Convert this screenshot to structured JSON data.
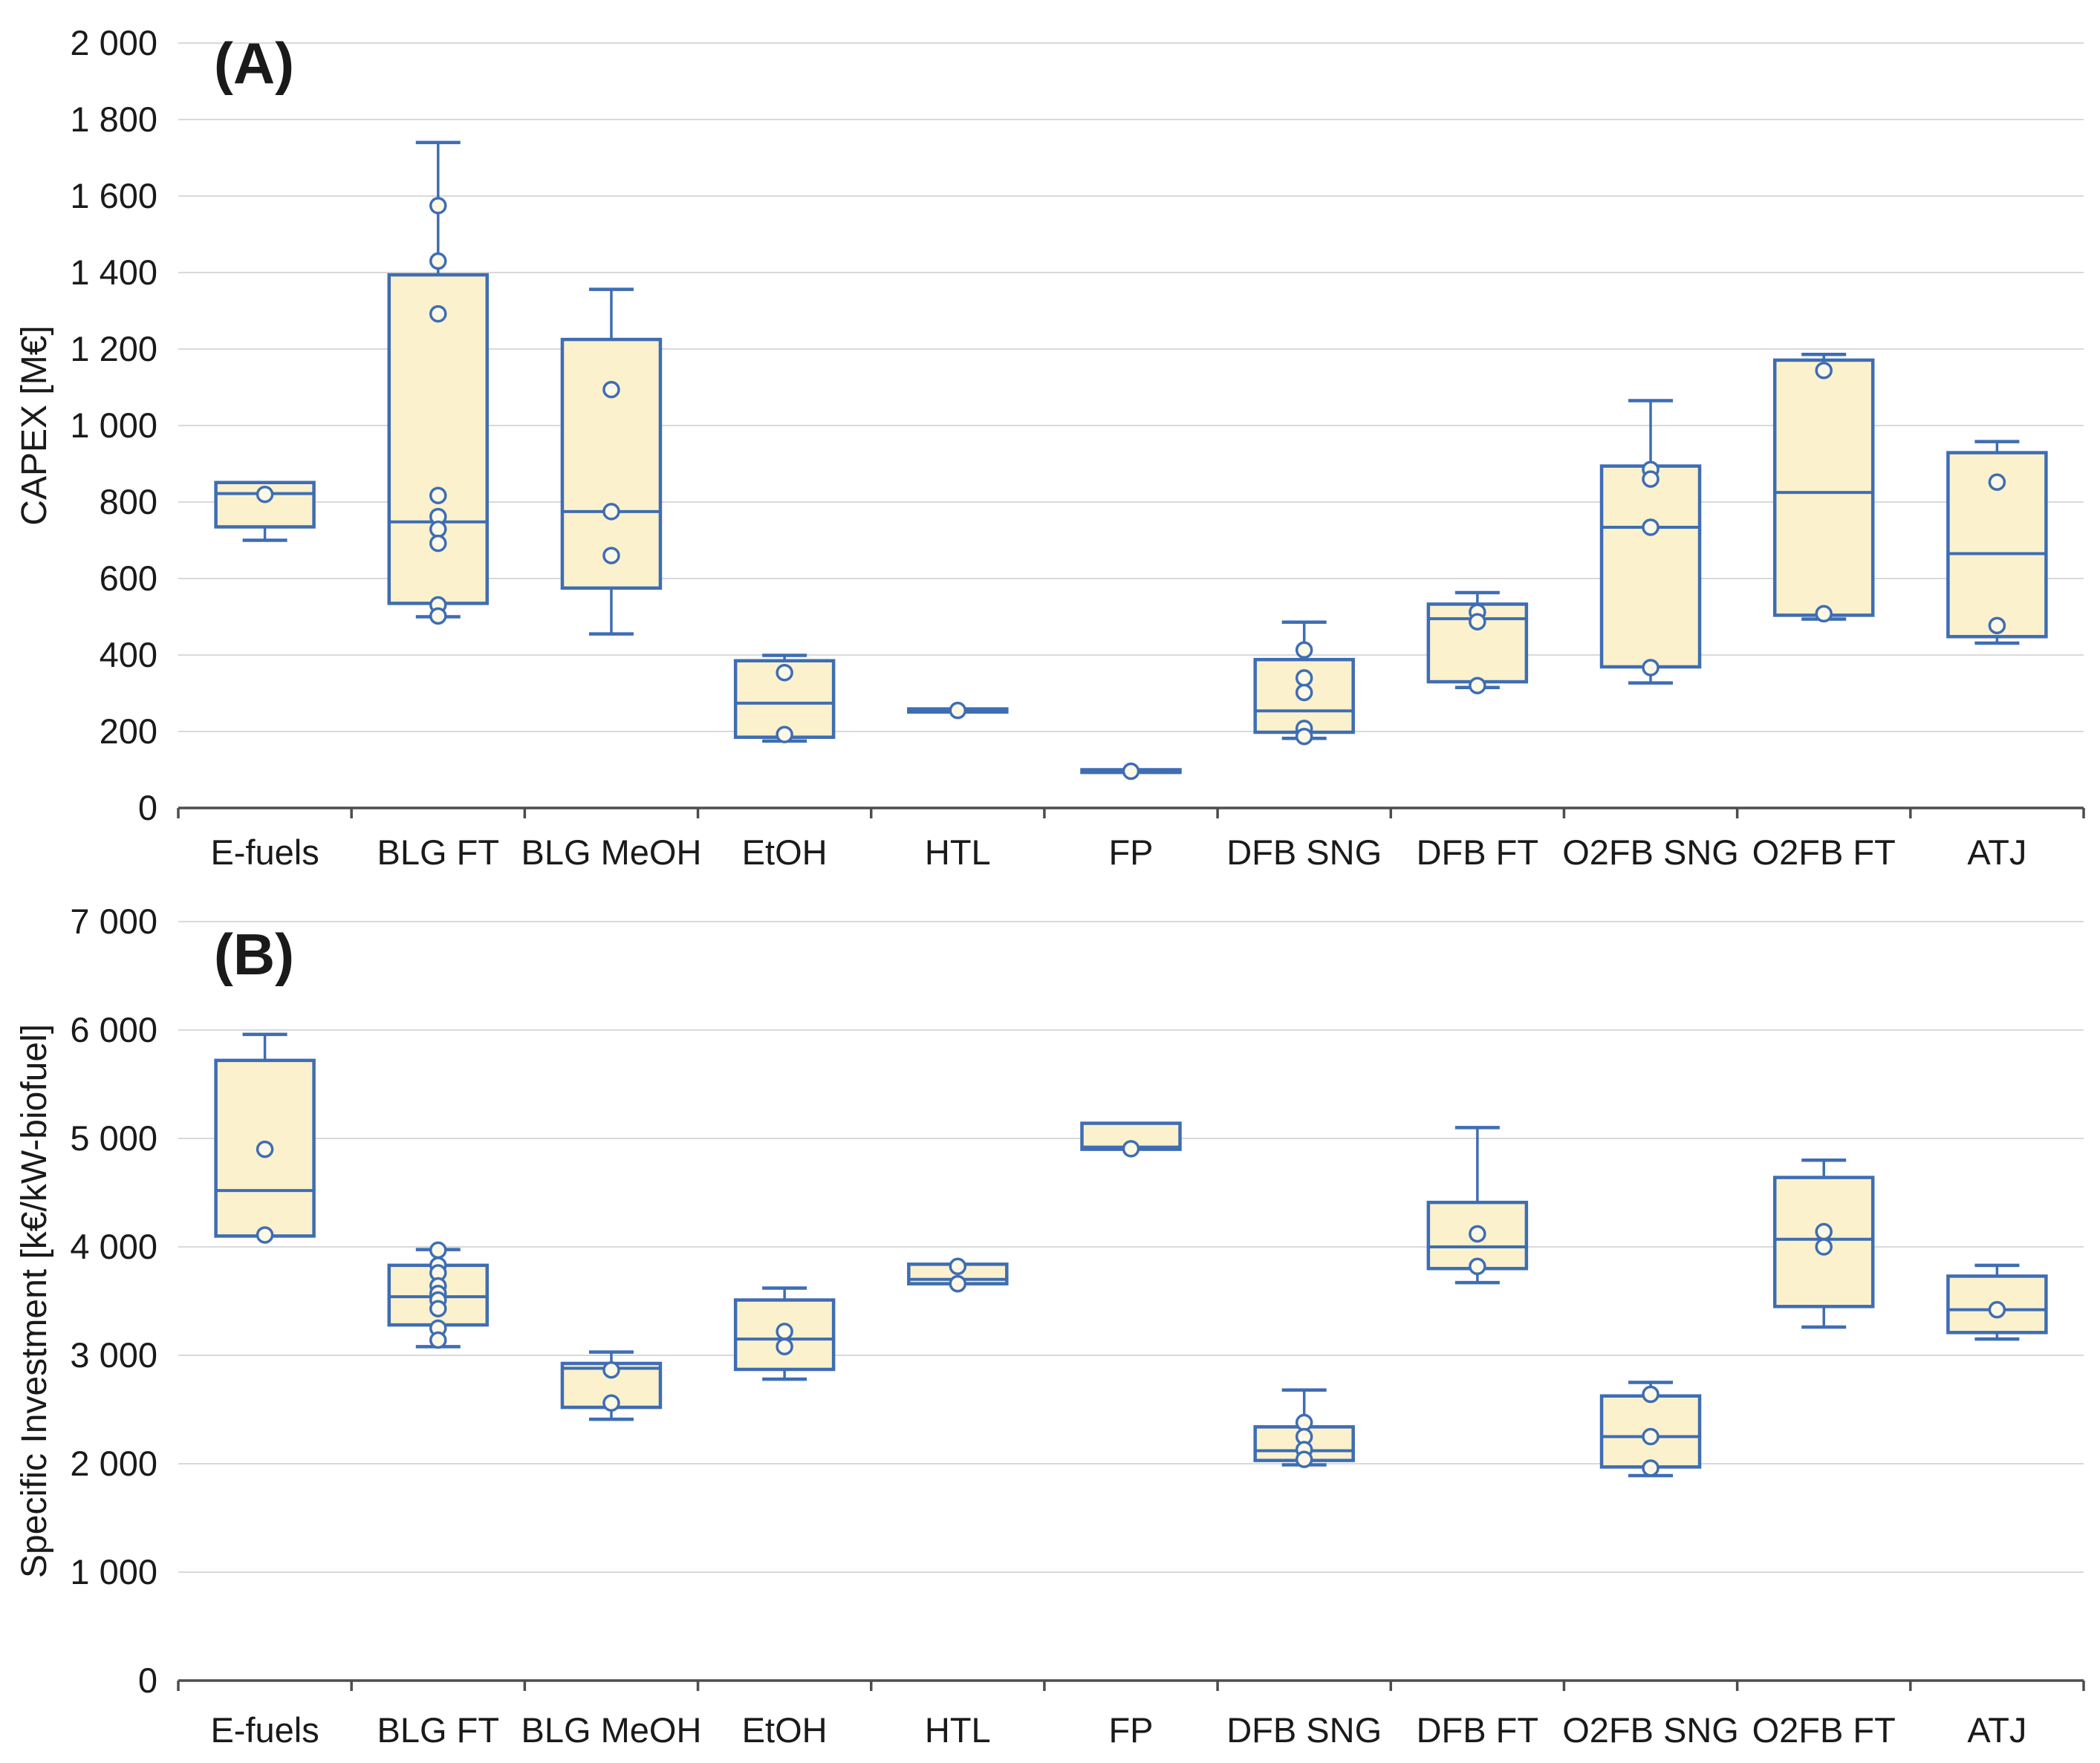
{
  "figure": {
    "description": "Two stacked box-and-whisker charts comparing biofuel production pathways",
    "panel_a_letter": "(A)",
    "panel_b_letter": "(B)"
  },
  "colors": {
    "box_fill": "#FBF1CD",
    "box_stroke": "#3E6DB3",
    "point_fill": "#FEF9E6",
    "point_stroke": "#3E6DB3",
    "gridline": "#D9D9D9",
    "axis_line": "#4D4D4D",
    "text": "#1A1A1A"
  },
  "chart_data": [
    {
      "type": "box",
      "panel": "A",
      "title": "(A)",
      "xlabel": "",
      "ylabel": "CAPEX [M€]",
      "ylim": [
        0,
        2000
      ],
      "grid": true,
      "legend_position": "none",
      "yticks": [
        {
          "value": 0,
          "label": "0"
        },
        {
          "value": 200,
          "label": "200"
        },
        {
          "value": 400,
          "label": "400"
        },
        {
          "value": 600,
          "label": "600"
        },
        {
          "value": 800,
          "label": "800"
        },
        {
          "value": 1000,
          "label": "1 000"
        },
        {
          "value": 1200,
          "label": "1 200"
        },
        {
          "value": 1400,
          "label": "1 400"
        },
        {
          "value": 1600,
          "label": "1 600"
        },
        {
          "value": 1800,
          "label": "1 800"
        },
        {
          "value": 2000,
          "label": "2 000"
        }
      ],
      "categories": [
        "E-fuels",
        "BLG FT",
        "BLG MeOH",
        "EtOH",
        "HTL",
        "FP",
        "DFB SNG",
        "DFB FT",
        "O2FB SNG",
        "O2FB FT",
        "ATJ"
      ],
      "series": [
        {
          "name": "E-fuels",
          "whisker_low": 700,
          "q1": 735,
          "median": 822,
          "q3": 851,
          "whisker_high": 858,
          "points": [
            820
          ]
        },
        {
          "name": "BLG FT",
          "whisker_low": 500,
          "q1": 535,
          "median": 748,
          "q3": 1394,
          "whisker_high": 1740,
          "points": [
            1575,
            1430,
            1292,
            817,
            762,
            729,
            692,
            531,
            502
          ]
        },
        {
          "name": "BLG MeOH",
          "whisker_low": 455,
          "q1": 575,
          "median": 775,
          "q3": 1225,
          "whisker_high": 1356,
          "points": [
            1094,
            775,
            660
          ]
        },
        {
          "name": "EtOH",
          "whisker_low": 175,
          "q1": 185,
          "median": 274,
          "q3": 385,
          "whisker_high": 399,
          "points": [
            354,
            192
          ]
        },
        {
          "name": "HTL",
          "whisker_low": 248,
          "q1": 251,
          "median": 255,
          "q3": 259,
          "whisker_high": 262,
          "points": [
            255
          ]
        },
        {
          "name": "FP",
          "whisker_low": 91,
          "q1": 93,
          "median": 96,
          "q3": 100,
          "whisker_high": 102,
          "points": [
            96
          ]
        },
        {
          "name": "DFB SNG",
          "whisker_low": 182,
          "q1": 198,
          "median": 254,
          "q3": 388,
          "whisker_high": 486,
          "points": [
            413,
            340,
            302,
            208,
            187
          ]
        },
        {
          "name": "DFB FT",
          "whisker_low": 315,
          "q1": 330,
          "median": 495,
          "q3": 533,
          "whisker_high": 563,
          "points": [
            512,
            487,
            320
          ]
        },
        {
          "name": "O2FB SNG",
          "whisker_low": 327,
          "q1": 369,
          "median": 734,
          "q3": 894,
          "whisker_high": 1065,
          "points": [
            885,
            860,
            734,
            367
          ]
        },
        {
          "name": "O2FB FT",
          "whisker_low": 494,
          "q1": 504,
          "median": 825,
          "q3": 1171,
          "whisker_high": 1186,
          "points": [
            1144,
            508
          ]
        },
        {
          "name": "ATJ",
          "whisker_low": 431,
          "q1": 448,
          "median": 665,
          "q3": 929,
          "whisker_high": 958,
          "points": [
            852,
            477
          ]
        }
      ]
    },
    {
      "type": "box",
      "panel": "B",
      "title": "(B)",
      "xlabel": "",
      "ylabel": "Specific Investment [k€/kW-biofuel]",
      "ylim": [
        0,
        7000
      ],
      "grid": true,
      "legend_position": "none",
      "yticks": [
        {
          "value": 0,
          "label": "0"
        },
        {
          "value": 1000,
          "label": "1 000"
        },
        {
          "value": 2000,
          "label": "2 000"
        },
        {
          "value": 3000,
          "label": "3 000"
        },
        {
          "value": 4000,
          "label": "4 000"
        },
        {
          "value": 5000,
          "label": "5 000"
        },
        {
          "value": 6000,
          "label": "6 000"
        },
        {
          "value": 7000,
          "label": "7 000"
        }
      ],
      "categories": [
        "E-fuels",
        "BLG FT",
        "BLG MeOH",
        "EtOH",
        "HTL",
        "FP",
        "DFB SNG",
        "DFB FT",
        "O2FB SNG",
        "O2FB FT",
        "ATJ"
      ],
      "series": [
        {
          "name": "E-fuels",
          "whisker_low": 4100,
          "q1": 4100,
          "median": 4520,
          "q3": 5720,
          "whisker_high": 5960,
          "points": [
            4900,
            4110
          ]
        },
        {
          "name": "BLG FT",
          "whisker_low": 3080,
          "q1": 3280,
          "median": 3540,
          "q3": 3830,
          "whisker_high": 3975,
          "points": [
            3970,
            3830,
            3760,
            3640,
            3570,
            3510,
            3430,
            3250,
            3140
          ]
        },
        {
          "name": "BLG MeOH",
          "whisker_low": 2410,
          "q1": 2520,
          "median": 2880,
          "q3": 2925,
          "whisker_high": 3030,
          "points": [
            2865,
            2560
          ]
        },
        {
          "name": "EtOH",
          "whisker_low": 2780,
          "q1": 2870,
          "median": 3150,
          "q3": 3510,
          "whisker_high": 3620,
          "points": [
            3220,
            3080
          ]
        },
        {
          "name": "HTL",
          "whisker_low": 3640,
          "q1": 3660,
          "median": 3700,
          "q3": 3840,
          "whisker_high": 3855,
          "points": [
            3820,
            3660
          ]
        },
        {
          "name": "FP",
          "whisker_low": 4890,
          "q1": 4900,
          "median": 4920,
          "q3": 5140,
          "whisker_high": 5145,
          "points": [
            4905
          ]
        },
        {
          "name": "DFB SNG",
          "whisker_low": 1990,
          "q1": 2030,
          "median": 2120,
          "q3": 2340,
          "whisker_high": 2680,
          "points": [
            2380,
            2250,
            2130,
            2040
          ]
        },
        {
          "name": "DFB FT",
          "whisker_low": 3670,
          "q1": 3800,
          "median": 4000,
          "q3": 4410,
          "whisker_high": 5100,
          "points": [
            4120,
            3820
          ]
        },
        {
          "name": "O2FB SNG",
          "whisker_low": 1890,
          "q1": 1970,
          "median": 2250,
          "q3": 2625,
          "whisker_high": 2750,
          "points": [
            2640,
            2250,
            1960
          ]
        },
        {
          "name": "O2FB FT",
          "whisker_low": 3260,
          "q1": 3450,
          "median": 4070,
          "q3": 4640,
          "whisker_high": 4800,
          "points": [
            4140,
            4000
          ]
        },
        {
          "name": "ATJ",
          "whisker_low": 3150,
          "q1": 3210,
          "median": 3420,
          "q3": 3730,
          "whisker_high": 3830,
          "points": [
            3420
          ]
        }
      ]
    }
  ]
}
